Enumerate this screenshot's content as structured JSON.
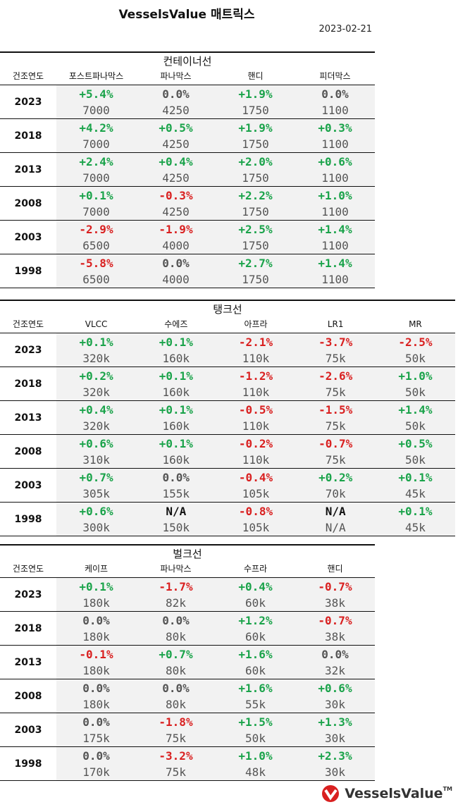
{
  "header": {
    "title": "VesselsValue 매트릭스",
    "date": "2023-02-21"
  },
  "logo": {
    "text": "VesselsValue",
    "tm": "TM",
    "accent": "#d92020"
  },
  "colors": {
    "positive": "#1aa34a",
    "negative": "#d92020",
    "neutral": "#555555"
  },
  "sections": [
    {
      "title": "컨테이너선",
      "year_header": "건조연도",
      "columns": [
        "포스트파나막스",
        "파나막스",
        "핸디",
        "피더막스"
      ],
      "rows": [
        {
          "year": "2023",
          "cells": [
            [
              "+5.4%",
              "7000"
            ],
            [
              "0.0%",
              "4250"
            ],
            [
              "+1.9%",
              "1750"
            ],
            [
              "0.0%",
              "1100"
            ]
          ]
        },
        {
          "year": "2018",
          "cells": [
            [
              "+4.2%",
              "7000"
            ],
            [
              "+0.5%",
              "4250"
            ],
            [
              "+1.9%",
              "1750"
            ],
            [
              "+0.3%",
              "1100"
            ]
          ]
        },
        {
          "year": "2013",
          "cells": [
            [
              "+2.4%",
              "7000"
            ],
            [
              "+0.4%",
              "4250"
            ],
            [
              "+2.0%",
              "1750"
            ],
            [
              "+0.6%",
              "1100"
            ]
          ]
        },
        {
          "year": "2008",
          "cells": [
            [
              "+0.1%",
              "7000"
            ],
            [
              "-0.3%",
              "4250"
            ],
            [
              "+2.2%",
              "1750"
            ],
            [
              "+1.0%",
              "1100"
            ]
          ]
        },
        {
          "year": "2003",
          "cells": [
            [
              "-2.9%",
              "6500"
            ],
            [
              "-1.9%",
              "4000"
            ],
            [
              "+2.5%",
              "1750"
            ],
            [
              "+1.4%",
              "1100"
            ]
          ]
        },
        {
          "year": "1998",
          "cells": [
            [
              "-5.8%",
              "6500"
            ],
            [
              "0.0%",
              "4000"
            ],
            [
              "+2.7%",
              "1750"
            ],
            [
              "+1.4%",
              "1100"
            ]
          ]
        }
      ]
    },
    {
      "title": "탱크선",
      "year_header": "건조연도",
      "columns": [
        "VLCC",
        "수에즈",
        "아프라",
        "LR1",
        "MR"
      ],
      "rows": [
        {
          "year": "2023",
          "cells": [
            [
              "+0.1%",
              "320k"
            ],
            [
              "+0.1%",
              "160k"
            ],
            [
              "-2.1%",
              "110k"
            ],
            [
              "-3.7%",
              "75k"
            ],
            [
              "-2.5%",
              "50k"
            ]
          ]
        },
        {
          "year": "2018",
          "cells": [
            [
              "+0.2%",
              "320k"
            ],
            [
              "+0.1%",
              "160k"
            ],
            [
              "-1.2%",
              "110k"
            ],
            [
              "-2.6%",
              "75k"
            ],
            [
              "+1.0%",
              "50k"
            ]
          ]
        },
        {
          "year": "2013",
          "cells": [
            [
              "+0.4%",
              "320k"
            ],
            [
              "+0.1%",
              "160k"
            ],
            [
              "-0.5%",
              "110k"
            ],
            [
              "-1.5%",
              "75k"
            ],
            [
              "+1.4%",
              "50k"
            ]
          ]
        },
        {
          "year": "2008",
          "cells": [
            [
              "+0.6%",
              "310k"
            ],
            [
              "+0.1%",
              "160k"
            ],
            [
              "-0.2%",
              "110k"
            ],
            [
              "-0.7%",
              "75k"
            ],
            [
              "+0.5%",
              "50k"
            ]
          ]
        },
        {
          "year": "2003",
          "cells": [
            [
              "+0.7%",
              "305k"
            ],
            [
              "0.0%",
              "155k"
            ],
            [
              "-0.4%",
              "105k"
            ],
            [
              "+0.2%",
              "70k"
            ],
            [
              "+0.1%",
              "45k"
            ]
          ]
        },
        {
          "year": "1998",
          "cells": [
            [
              "+0.6%",
              "300k"
            ],
            [
              "N/A",
              "150k"
            ],
            [
              "-0.8%",
              "105k"
            ],
            [
              "N/A",
              "N/A"
            ],
            [
              "+0.1%",
              "45k"
            ]
          ]
        }
      ]
    },
    {
      "title": "벌크선",
      "year_header": "건조연도",
      "columns": [
        "케이프",
        "파나막스",
        "수프라",
        "핸디"
      ],
      "rows": [
        {
          "year": "2023",
          "cells": [
            [
              "+0.1%",
              "180k"
            ],
            [
              "-1.7%",
              "82k"
            ],
            [
              "+0.4%",
              "60k"
            ],
            [
              "-0.7%",
              "38k"
            ]
          ]
        },
        {
          "year": "2018",
          "cells": [
            [
              "0.0%",
              "180k"
            ],
            [
              "0.0%",
              "80k"
            ],
            [
              "+1.2%",
              "60k"
            ],
            [
              "-0.7%",
              "38k"
            ]
          ]
        },
        {
          "year": "2013",
          "cells": [
            [
              "-0.1%",
              "180k"
            ],
            [
              "+0.7%",
              "80k"
            ],
            [
              "+1.6%",
              "60k"
            ],
            [
              "0.0%",
              "32k"
            ]
          ]
        },
        {
          "year": "2008",
          "cells": [
            [
              "0.0%",
              "180k"
            ],
            [
              "0.0%",
              "80k"
            ],
            [
              "+1.6%",
              "55k"
            ],
            [
              "+0.6%",
              "30k"
            ]
          ]
        },
        {
          "year": "2003",
          "cells": [
            [
              "0.0%",
              "175k"
            ],
            [
              "-1.8%",
              "75k"
            ],
            [
              "+1.5%",
              "50k"
            ],
            [
              "+1.3%",
              "30k"
            ]
          ]
        },
        {
          "year": "1998",
          "cells": [
            [
              "0.0%",
              "170k"
            ],
            [
              "-3.2%",
              "75k"
            ],
            [
              "+1.0%",
              "48k"
            ],
            [
              "+2.3%",
              "30k"
            ]
          ]
        }
      ]
    }
  ]
}
